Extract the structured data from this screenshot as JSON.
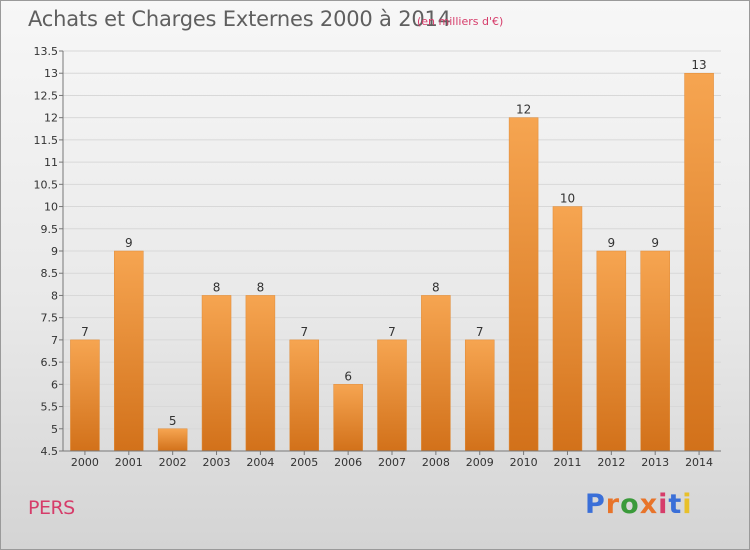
{
  "header": {
    "title": "Achats et Charges Externes 2000 à 2014",
    "subtitle": "(en milliers d'€)"
  },
  "footer": {
    "commune": "PERS",
    "logo": "Proxiti",
    "logo_colors": [
      "#3a6fd8",
      "#e8742a",
      "#3a9a3a",
      "#e8742a",
      "#d63c6a",
      "#3a6fd8",
      "#e8c02a"
    ]
  },
  "colors": {
    "bar_top": "#f6a551",
    "bar_bottom": "#d2711a",
    "grid": "#d8d8d8",
    "axis": "#777777"
  },
  "chart_data": {
    "type": "bar",
    "title": "Achats et Charges Externes 2000 à 2014",
    "subtitle": "(en milliers d'€)",
    "xlabel": "",
    "ylabel": "",
    "categories": [
      "2000",
      "2001",
      "2002",
      "2003",
      "2004",
      "2005",
      "2006",
      "2007",
      "2008",
      "2009",
      "2010",
      "2011",
      "2012",
      "2013",
      "2014"
    ],
    "values": [
      7,
      9,
      5,
      8,
      8,
      7,
      6,
      7,
      8,
      7,
      12,
      10,
      9,
      9,
      13
    ],
    "data_labels": [
      "7",
      "9",
      "5",
      "8",
      "8",
      "7",
      "6",
      "7",
      "8",
      "7",
      "12",
      "10",
      "9",
      "9",
      "13"
    ],
    "ylim": [
      4.5,
      13.5
    ],
    "yticks": [
      4.5,
      5,
      5.5,
      6,
      6.5,
      7,
      7.5,
      8,
      8.5,
      9,
      9.5,
      10,
      10.5,
      11,
      11.5,
      12,
      12.5,
      13,
      13.5
    ],
    "ytick_labels": [
      "4.5",
      "5",
      "5.5",
      "6",
      "6.5",
      "7",
      "7.5",
      "8",
      "8.5",
      "9",
      "9.5",
      "10",
      "10.5",
      "11",
      "11.5",
      "12",
      "12.5",
      "13",
      "13.5"
    ],
    "grid": true,
    "legend": "none"
  }
}
